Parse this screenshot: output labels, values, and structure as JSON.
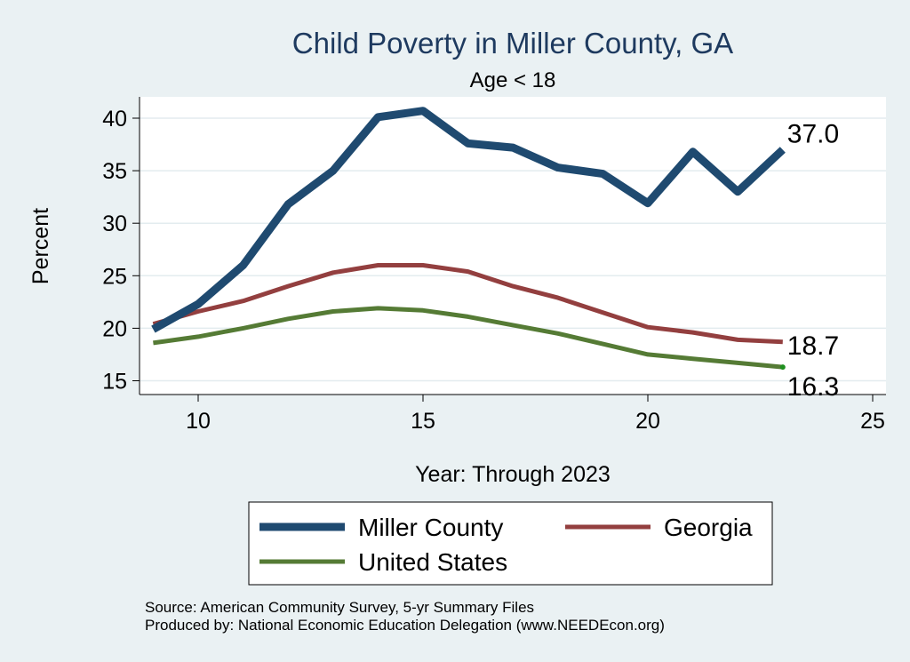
{
  "chart_data": {
    "type": "line",
    "title": "Child Poverty in Miller County, GA",
    "subtitle": "Age < 18",
    "xlabel": "Year: Through 2023",
    "ylabel": "Percent",
    "xlim": [
      9,
      25
    ],
    "ylim": [
      14,
      42
    ],
    "x_ticks": [
      "10",
      "15",
      "20",
      "25"
    ],
    "y_ticks": [
      "15",
      "20",
      "25",
      "30",
      "35",
      "40"
    ],
    "x": [
      9,
      10,
      11,
      12,
      13,
      14,
      15,
      16,
      17,
      18,
      19,
      20,
      21,
      22,
      23
    ],
    "series": [
      {
        "name": "Miller County",
        "color": "#1f4a70",
        "values": [
          19.9,
          22.3,
          26.0,
          31.8,
          35.0,
          40.1,
          40.7,
          37.6,
          37.2,
          35.3,
          34.7,
          31.9,
          36.8,
          33.0,
          37.0
        ],
        "end_label": "37.0"
      },
      {
        "name": "Georgia",
        "color": "#933f3f",
        "values": [
          20.4,
          21.6,
          22.6,
          24.0,
          25.3,
          26.0,
          26.0,
          25.4,
          24.0,
          22.9,
          21.5,
          20.1,
          19.6,
          18.9,
          18.7
        ],
        "end_label": "18.7"
      },
      {
        "name": "United States",
        "color": "#557b35",
        "values": [
          18.6,
          19.2,
          20.0,
          20.9,
          21.6,
          21.9,
          21.7,
          21.1,
          20.3,
          19.5,
          18.5,
          17.5,
          17.1,
          16.7,
          16.3
        ],
        "end_label": "16.3"
      }
    ],
    "legend": {
      "position": "bottom",
      "items": [
        "Miller County",
        "Georgia",
        "United States"
      ]
    }
  },
  "source": {
    "line1": "Source: American Community Survey, 5-yr Summary Files",
    "line2": "Produced by: National Economic Education Delegation (www.NEEDEcon.org)"
  }
}
